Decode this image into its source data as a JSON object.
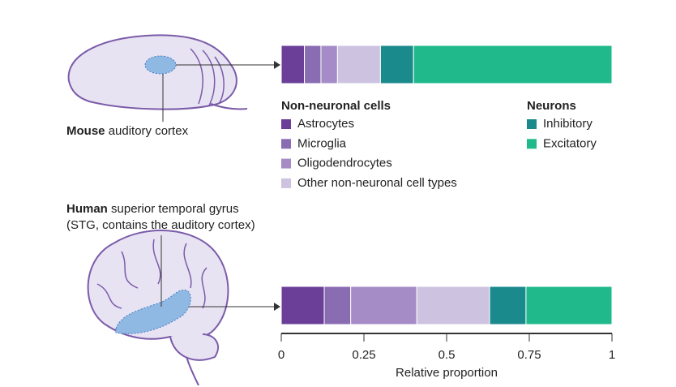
{
  "chart_data": {
    "type": "stacked-barh",
    "categories": [
      "Mouse",
      "Human"
    ],
    "category_descriptions": [
      [
        "auditory cortex"
      ],
      [
        "superior temporal gyrus",
        "(STG, contains the auditory cortex)"
      ]
    ],
    "legend_groups": [
      "Non-neuronal cells",
      "Neurons"
    ],
    "series": [
      {
        "name": "Astrocytes",
        "color": "#6b3f98",
        "group": 0,
        "values": [
          0.07,
          0.13
        ]
      },
      {
        "name": "Microglia",
        "color": "#8a6cb3",
        "group": 0,
        "values": [
          0.05,
          0.08
        ]
      },
      {
        "name": "Oligodendrocytes",
        "color": "#a58cc7",
        "group": 0,
        "values": [
          0.05,
          0.2
        ]
      },
      {
        "name": "Other non-neuronal cell types",
        "color": "#cdc3e1",
        "group": 0,
        "values": [
          0.13,
          0.22
        ]
      },
      {
        "name": "Inhibitory",
        "color": "#1a8a8d",
        "group": 1,
        "values": [
          0.1,
          0.11
        ]
      },
      {
        "name": "Excitatory",
        "color": "#1fb98b",
        "group": 1,
        "values": [
          0.6,
          0.26
        ]
      }
    ],
    "xlim": [
      0,
      1
    ],
    "xticks": [
      0,
      0.25,
      0.5,
      0.75,
      1
    ],
    "xlabel": "Relative proportion"
  }
}
